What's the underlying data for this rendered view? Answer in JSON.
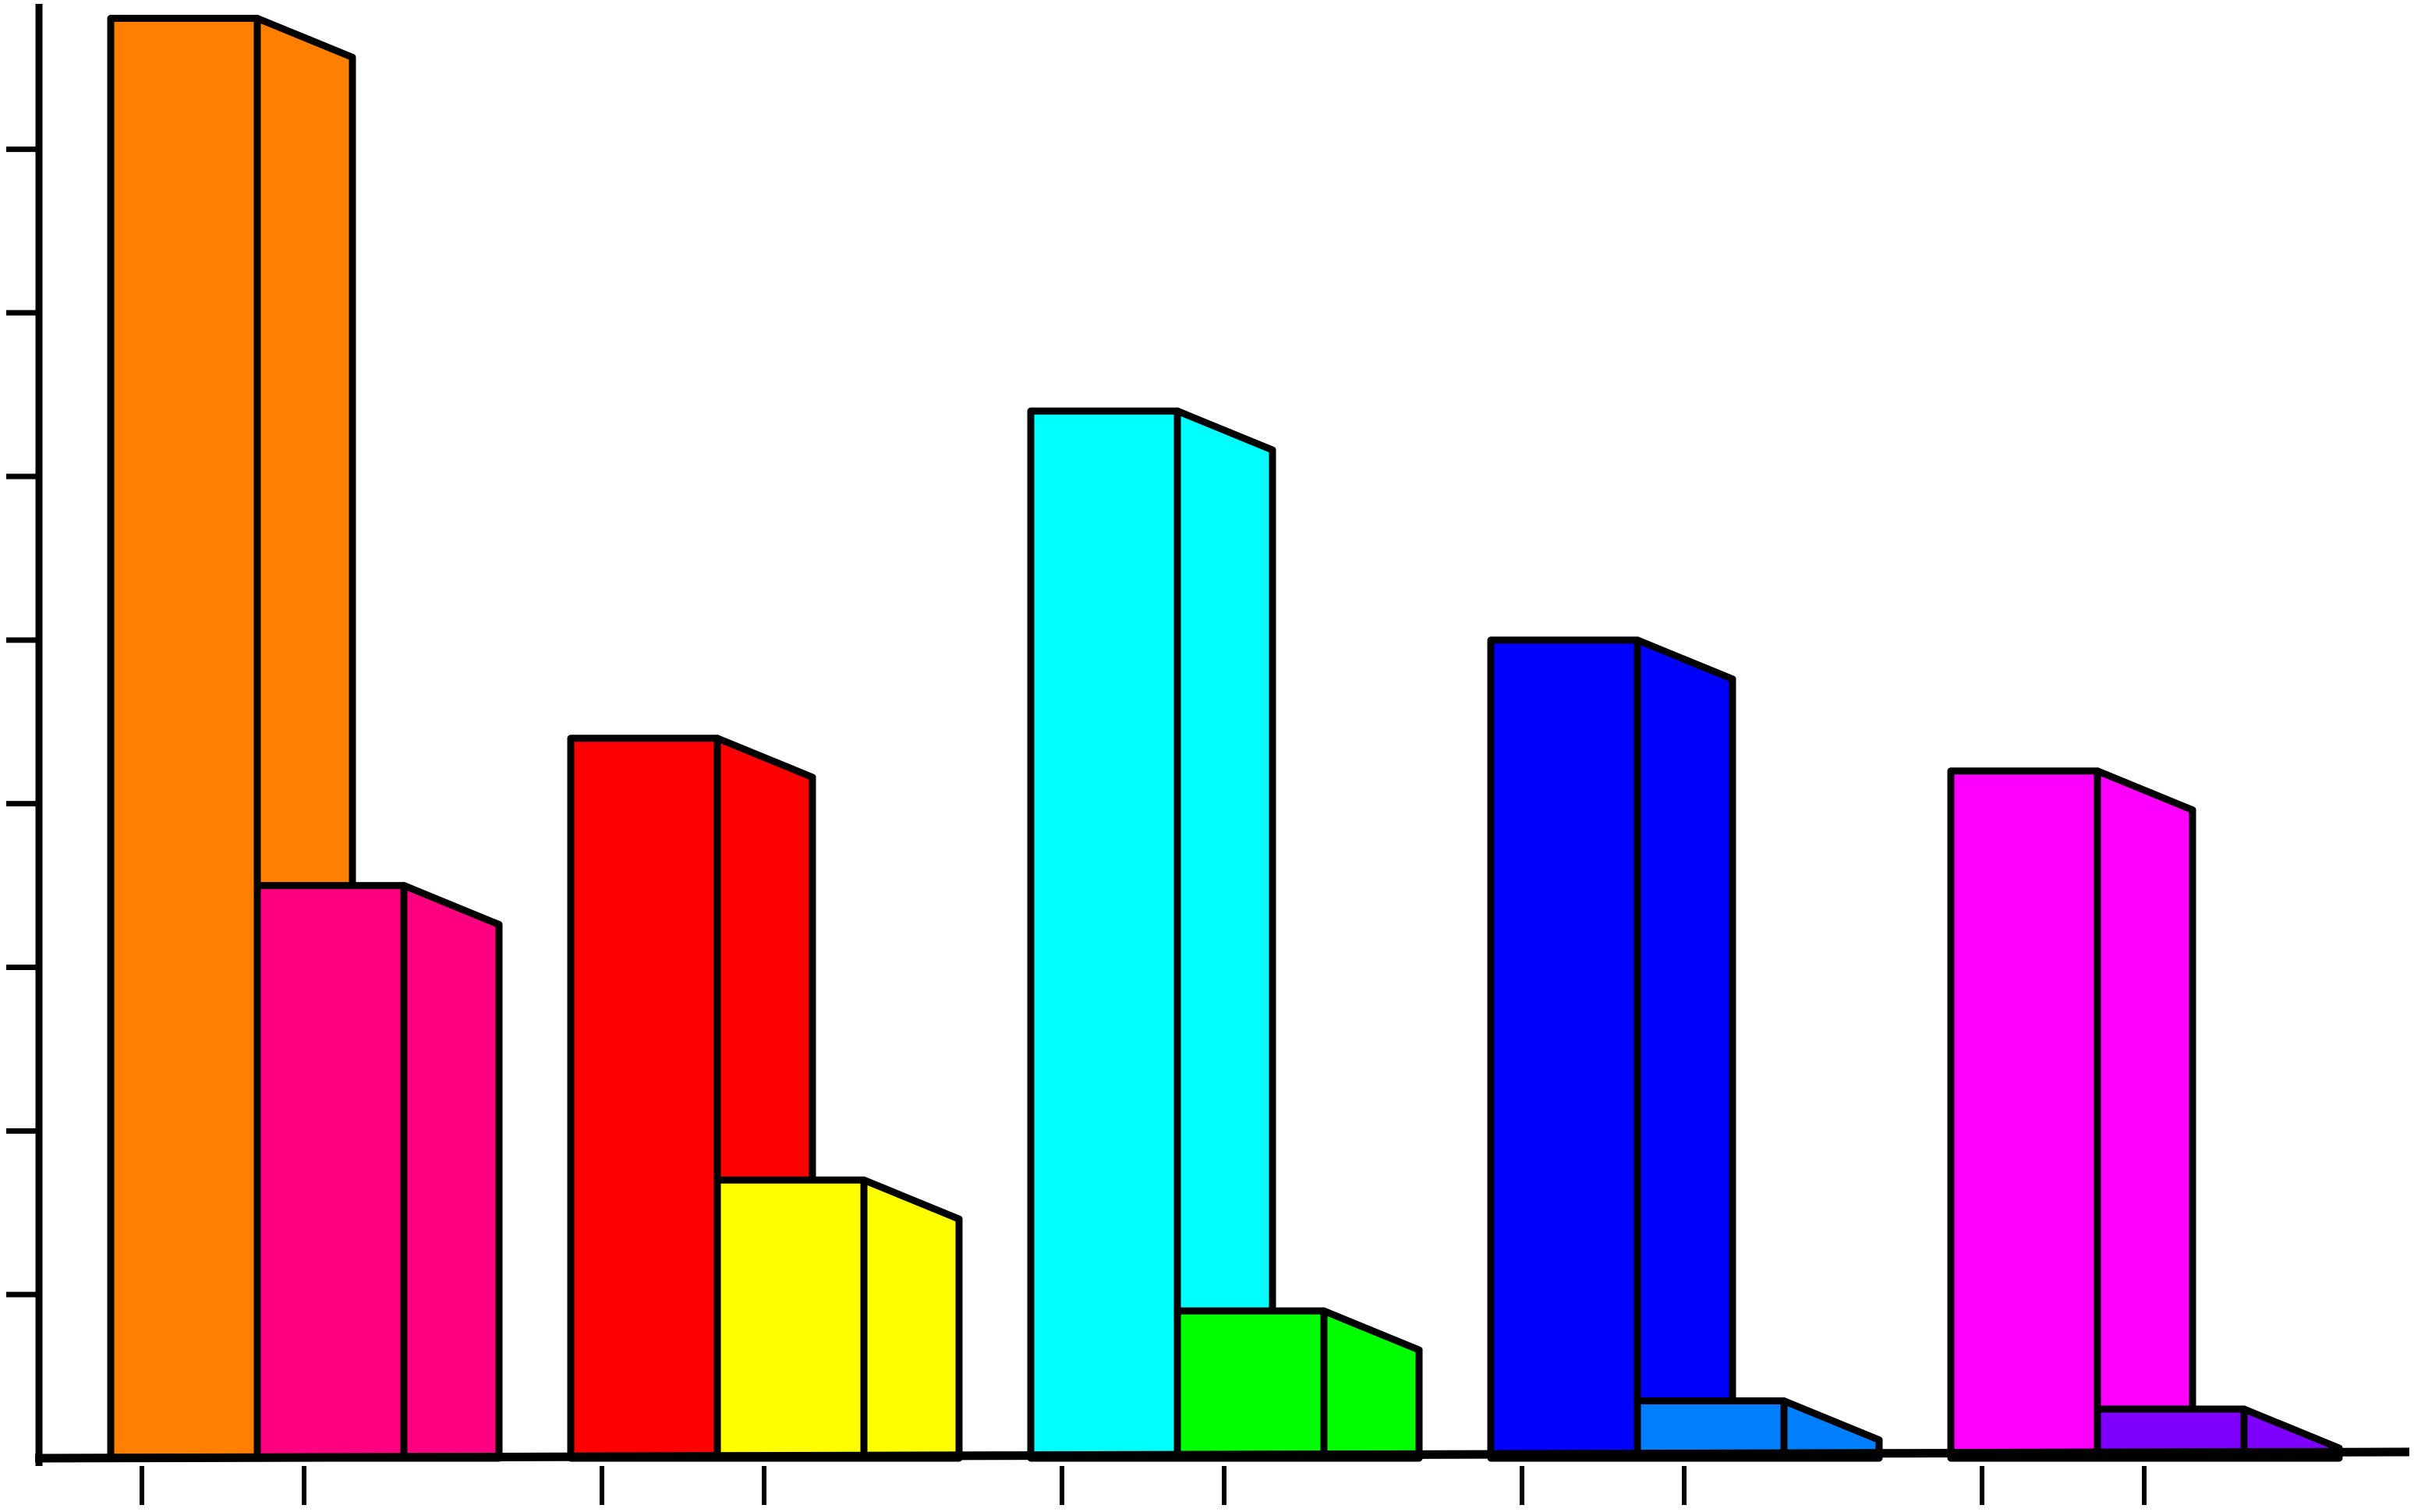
{
  "chart_data": {
    "type": "bar",
    "style": "3d hand-drawn",
    "title": "",
    "xlabel": "",
    "ylabel": "",
    "ylim": [
      0,
      8.85
    ],
    "grid": false,
    "legend": "none",
    "categories": [
      "",
      "",
      "",
      "",
      ""
    ],
    "series": [
      {
        "values": [
          8.8,
          4.4,
          6.4,
          5.0,
          4.2
        ],
        "colors": [
          "#FF8000",
          "#FF0000",
          "#00FFFF",
          "#0000FF",
          "#FF00FF"
        ]
      },
      {
        "values": [
          3.5,
          1.7,
          0.9,
          0.35,
          0.3
        ],
        "colors": [
          "#FF0080",
          "#FFFF00",
          "#00FF00",
          "#0080FF",
          "#8000FF"
        ]
      }
    ],
    "y_ticks": [
      1,
      2,
      3,
      4,
      5,
      6,
      7,
      8
    ]
  }
}
